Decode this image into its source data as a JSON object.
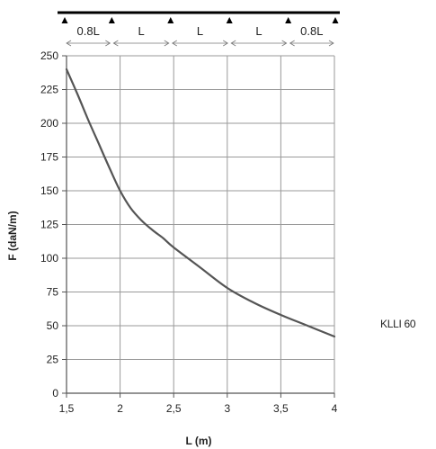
{
  "chart_data": {
    "type": "line",
    "title": "",
    "xlabel": "L (m)",
    "ylabel": "F  (daN/m)",
    "xlim": [
      1.5,
      4
    ],
    "ylim": [
      0,
      250
    ],
    "grid": true,
    "x_ticks": [
      "1,5",
      "2",
      "2,5",
      "3",
      "3,5",
      "4"
    ],
    "y_ticks": [
      "0",
      "25",
      "50",
      "75",
      "100",
      "125",
      "150",
      "175",
      "200",
      "225",
      "250"
    ],
    "series": [
      {
        "x": [
          1.5,
          1.6,
          1.7,
          1.8,
          1.9,
          2.0,
          2.1,
          2.2,
          2.3,
          2.4,
          2.5,
          2.75,
          3.0,
          3.25,
          3.5,
          3.75,
          4.0
        ],
        "y": [
          240,
          222,
          203,
          185,
          167,
          150,
          137,
          128,
          121,
          115,
          108,
          93,
          78,
          67,
          58,
          50,
          42
        ],
        "color": "#555555"
      }
    ],
    "span_diagram": {
      "labels": [
        "0.8L",
        "L",
        "L",
        "L",
        "0.8L"
      ]
    }
  },
  "side_label": "KLLI 60"
}
